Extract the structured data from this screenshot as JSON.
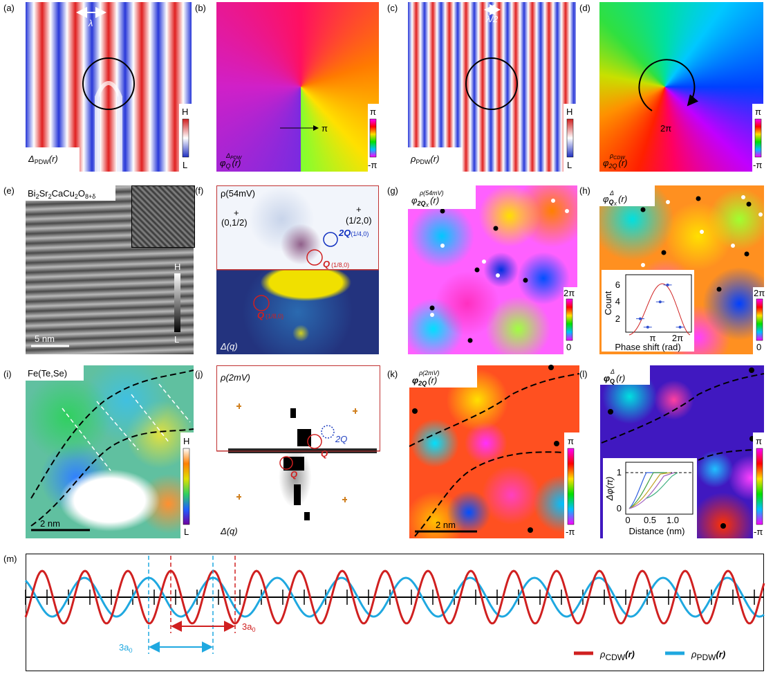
{
  "a": {
    "label": "(a)",
    "lambda": "λ",
    "title": {
      "sym": "Δ",
      "sub": "PDW",
      "arg": "(r)"
    },
    "cbar": [
      "H",
      "L"
    ]
  },
  "b": {
    "label": "(b)",
    "arrow": "π",
    "title": {
      "sym": "φ",
      "sub": "Q",
      "sup": "Δ",
      "supsub": "PDW",
      "arg": "(r)"
    },
    "cbar": [
      "π",
      "-π"
    ]
  },
  "c": {
    "label": "(c)",
    "lambda": "λ/2",
    "title": {
      "sym": "ρ",
      "sub": "PDW",
      "arg": "(r)"
    },
    "cbar": [
      "H",
      "L"
    ]
  },
  "d": {
    "label": "(d)",
    "winding": "2π",
    "title": {
      "sym": "φ",
      "sub": "2Q",
      "sup": "ρ",
      "supsub": "CDW",
      "arg": "(r)"
    },
    "cbar": [
      "π",
      "-π"
    ]
  },
  "e": {
    "label": "(e)",
    "material": [
      "Bi",
      "2",
      "Sr",
      "2",
      "CaCu",
      "2",
      "O",
      "8+δ"
    ],
    "scale": "5 nm",
    "cbar": [
      "H",
      "L"
    ]
  },
  "f": {
    "label": "(f)",
    "title": "ρ(54mV)",
    "plus1": "+",
    "pos1": "(0,1/2)",
    "plus2": "+",
    "pos2": "(1/2,0)",
    "q2": {
      "q": "2Q",
      "pos": "(1/4,0)"
    },
    "q1": {
      "q": "Q",
      "pos": "(1/8,0)"
    },
    "q1b": {
      "q": "Q",
      "pos": "(1/8,0)"
    },
    "bottom": "Δ(q)"
  },
  "g": {
    "label": "(g)",
    "title": {
      "sym": "φ",
      "sub": "2Q",
      "subsub": "X",
      "sup": "ρ(54mV)",
      "arg": "(r)"
    },
    "cbar": [
      "2π",
      "0"
    ]
  },
  "h": {
    "label": "(h)",
    "title": {
      "sym": "φ",
      "sub": "Q",
      "subsub": "X",
      "sup": "Δ",
      "arg": "(r)"
    },
    "cbar": [
      "2π",
      "0"
    ],
    "inset": {
      "ylabel": "Count",
      "xlabel": "Phase shift (rad)",
      "yticks": [
        "2",
        "4",
        "6"
      ],
      "xticks": [
        "π",
        "2π"
      ],
      "points": [
        {
          "x": 0.5,
          "y": 2
        },
        {
          "x": 0.8,
          "y": 1
        },
        {
          "x": 1.3,
          "y": 4
        },
        {
          "x": 1.6,
          "y": 6
        },
        {
          "x": 2.1,
          "y": 1
        }
      ]
    }
  },
  "i": {
    "label": "(i)",
    "material": "Fe(Te,Se)",
    "scale": "2 nm",
    "cbar": [
      "H",
      "L"
    ]
  },
  "j": {
    "label": "(j)",
    "title": "ρ(2mV)",
    "q2": "2Q",
    "q1": "Q",
    "q1b": "Q",
    "bottom": "Δ(q)"
  },
  "k": {
    "label": "(k)",
    "title": {
      "sym": "φ",
      "sub": "2Q",
      "sup": "ρ(2mV)",
      "arg": "(r)"
    },
    "scale": "2 nm",
    "cbar": [
      "π",
      "-π"
    ]
  },
  "l": {
    "label": "(l)",
    "title": {
      "sym": "φ",
      "sub": "Q",
      "sup": "Δ",
      "arg": "(r)"
    },
    "cbar": [
      "π",
      "-π"
    ],
    "inset": {
      "ylabel": "Δφ(π)",
      "xlabel": "Distance (nm)",
      "yticks": [
        "1",
        "0"
      ],
      "xticks": [
        "0",
        "0.5",
        "1.0"
      ]
    }
  },
  "m": {
    "label": "(m)",
    "red_span": {
      "n": "3a",
      "sub": "0"
    },
    "blue_span": {
      "n": "3a",
      "sub": "0"
    },
    "legend": [
      {
        "sym": "ρ",
        "sub": "CDW",
        "arg": "(r)"
      },
      {
        "sym": "ρ",
        "sub": "PDW",
        "arg": "(r)"
      }
    ]
  }
}
